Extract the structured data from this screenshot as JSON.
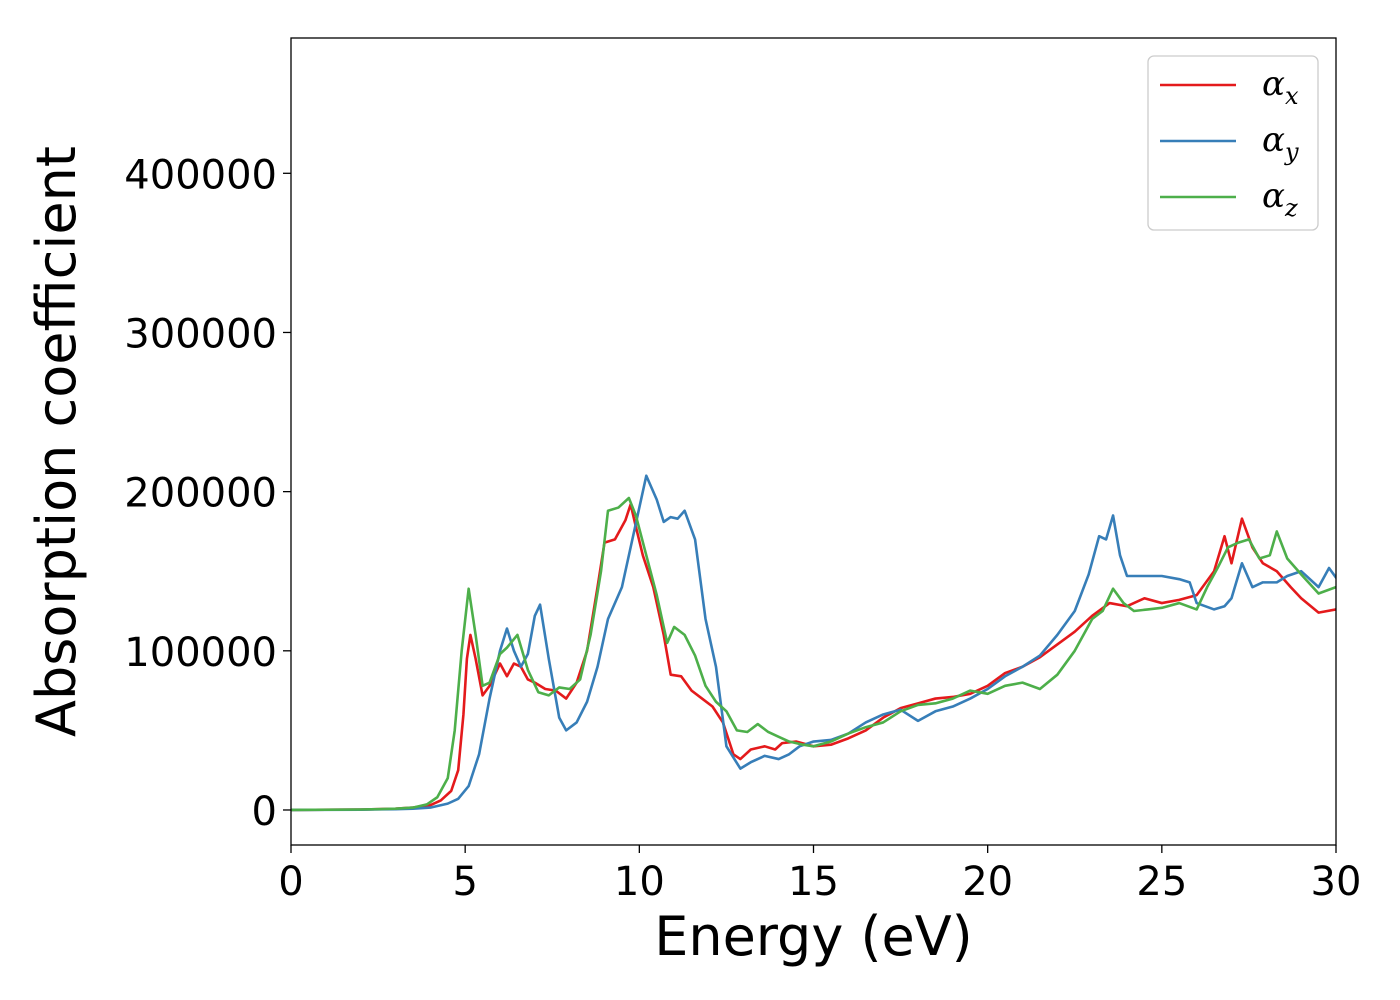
{
  "chart_data": {
    "type": "line",
    "title": "",
    "xlabel": "Energy (eV)",
    "ylabel": "Absorption coefficient",
    "xlim": [
      0,
      30
    ],
    "ylim": [
      -22000,
      485000
    ],
    "xticks": [
      0,
      5,
      10,
      15,
      20,
      25,
      30
    ],
    "xtick_labels": [
      "0",
      "5",
      "10",
      "15",
      "20",
      "25",
      "30"
    ],
    "yticks": [
      0,
      100000,
      200000,
      300000,
      400000
    ],
    "ytick_labels": [
      "0",
      "100000",
      "200000",
      "300000",
      "400000"
    ],
    "grid": false,
    "legend_position": "top-right",
    "series": [
      {
        "name": "α_x",
        "label_base": "α",
        "label_sub": "x",
        "color": "#e41a1c",
        "points": [
          [
            0,
            0
          ],
          [
            2,
            300
          ],
          [
            3,
            800
          ],
          [
            3.5,
            1500
          ],
          [
            4,
            3000
          ],
          [
            4.3,
            6000
          ],
          [
            4.6,
            12000
          ],
          [
            4.8,
            25000
          ],
          [
            4.95,
            60000
          ],
          [
            5.05,
            95000
          ],
          [
            5.15,
            110000
          ],
          [
            5.3,
            95000
          ],
          [
            5.5,
            72000
          ],
          [
            5.7,
            78000
          ],
          [
            6.0,
            92000
          ],
          [
            6.2,
            84000
          ],
          [
            6.4,
            92000
          ],
          [
            6.6,
            90000
          ],
          [
            6.8,
            82000
          ],
          [
            7.0,
            80000
          ],
          [
            7.3,
            76000
          ],
          [
            7.6,
            75000
          ],
          [
            7.9,
            70000
          ],
          [
            8.2,
            80000
          ],
          [
            8.5,
            100000
          ],
          [
            8.8,
            140000
          ],
          [
            9.0,
            168000
          ],
          [
            9.3,
            170000
          ],
          [
            9.6,
            182000
          ],
          [
            9.75,
            192000
          ],
          [
            9.9,
            178000
          ],
          [
            10.1,
            160000
          ],
          [
            10.4,
            140000
          ],
          [
            10.7,
            110000
          ],
          [
            10.9,
            85000
          ],
          [
            11.2,
            84000
          ],
          [
            11.5,
            75000
          ],
          [
            11.8,
            70000
          ],
          [
            12.1,
            65000
          ],
          [
            12.4,
            55000
          ],
          [
            12.7,
            35000
          ],
          [
            12.9,
            32000
          ],
          [
            13.2,
            38000
          ],
          [
            13.6,
            40000
          ],
          [
            13.9,
            38000
          ],
          [
            14.1,
            42000
          ],
          [
            14.5,
            43000
          ],
          [
            15.0,
            40000
          ],
          [
            15.5,
            41000
          ],
          [
            16.0,
            45000
          ],
          [
            16.5,
            50000
          ],
          [
            17.0,
            58000
          ],
          [
            17.5,
            64000
          ],
          [
            18.0,
            67000
          ],
          [
            18.5,
            70000
          ],
          [
            19.0,
            71000
          ],
          [
            19.5,
            73000
          ],
          [
            20.0,
            78000
          ],
          [
            20.5,
            86000
          ],
          [
            21.0,
            90000
          ],
          [
            21.5,
            96000
          ],
          [
            22.0,
            104000
          ],
          [
            22.5,
            112000
          ],
          [
            23.0,
            122000
          ],
          [
            23.5,
            130000
          ],
          [
            24.0,
            128000
          ],
          [
            24.5,
            133000
          ],
          [
            25.0,
            130000
          ],
          [
            25.5,
            132000
          ],
          [
            26.0,
            135000
          ],
          [
            26.5,
            150000
          ],
          [
            26.8,
            172000
          ],
          [
            27.0,
            155000
          ],
          [
            27.3,
            183000
          ],
          [
            27.6,
            165000
          ],
          [
            27.9,
            155000
          ],
          [
            28.3,
            150000
          ],
          [
            28.7,
            140000
          ],
          [
            29.0,
            133000
          ],
          [
            29.5,
            124000
          ],
          [
            30.0,
            126000
          ]
        ]
      },
      {
        "name": "α_y",
        "label_base": "α",
        "label_sub": "y",
        "color": "#377eb8",
        "points": [
          [
            0,
            0
          ],
          [
            2,
            200
          ],
          [
            3,
            500
          ],
          [
            3.5,
            800
          ],
          [
            4,
            1500
          ],
          [
            4.5,
            4000
          ],
          [
            4.8,
            7000
          ],
          [
            5.1,
            15000
          ],
          [
            5.4,
            35000
          ],
          [
            5.7,
            70000
          ],
          [
            6.0,
            100000
          ],
          [
            6.2,
            114000
          ],
          [
            6.4,
            100000
          ],
          [
            6.6,
            90000
          ],
          [
            6.8,
            98000
          ],
          [
            7.0,
            122000
          ],
          [
            7.15,
            129000
          ],
          [
            7.4,
            95000
          ],
          [
            7.7,
            58000
          ],
          [
            7.9,
            50000
          ],
          [
            8.2,
            55000
          ],
          [
            8.5,
            68000
          ],
          [
            8.8,
            90000
          ],
          [
            9.1,
            120000
          ],
          [
            9.5,
            140000
          ],
          [
            9.9,
            180000
          ],
          [
            10.2,
            210000
          ],
          [
            10.5,
            195000
          ],
          [
            10.7,
            181000
          ],
          [
            10.9,
            184000
          ],
          [
            11.1,
            183000
          ],
          [
            11.3,
            188000
          ],
          [
            11.6,
            170000
          ],
          [
            11.9,
            120000
          ],
          [
            12.2,
            90000
          ],
          [
            12.5,
            40000
          ],
          [
            12.9,
            26000
          ],
          [
            13.2,
            30000
          ],
          [
            13.6,
            34000
          ],
          [
            14.0,
            32000
          ],
          [
            14.3,
            35000
          ],
          [
            14.6,
            40000
          ],
          [
            15.0,
            43000
          ],
          [
            15.5,
            44000
          ],
          [
            16.0,
            48000
          ],
          [
            16.5,
            55000
          ],
          [
            17.0,
            60000
          ],
          [
            17.5,
            63000
          ],
          [
            18.0,
            56000
          ],
          [
            18.5,
            62000
          ],
          [
            19.0,
            65000
          ],
          [
            19.5,
            70000
          ],
          [
            20.0,
            76000
          ],
          [
            20.5,
            84000
          ],
          [
            21.0,
            90000
          ],
          [
            21.5,
            97000
          ],
          [
            22.0,
            110000
          ],
          [
            22.5,
            125000
          ],
          [
            22.9,
            148000
          ],
          [
            23.2,
            172000
          ],
          [
            23.4,
            170000
          ],
          [
            23.6,
            185000
          ],
          [
            23.8,
            160000
          ],
          [
            24.0,
            147000
          ],
          [
            24.5,
            147000
          ],
          [
            25.0,
            147000
          ],
          [
            25.5,
            145000
          ],
          [
            25.8,
            143000
          ],
          [
            26.0,
            130000
          ],
          [
            26.5,
            126000
          ],
          [
            26.8,
            128000
          ],
          [
            27.0,
            133000
          ],
          [
            27.3,
            155000
          ],
          [
            27.6,
            140000
          ],
          [
            27.9,
            143000
          ],
          [
            28.3,
            143000
          ],
          [
            28.6,
            147000
          ],
          [
            29.0,
            150000
          ],
          [
            29.5,
            140000
          ],
          [
            29.8,
            152000
          ],
          [
            30.0,
            146000
          ]
        ]
      },
      {
        "name": "α_z",
        "label_base": "α",
        "label_sub": "z",
        "color": "#4daf4a",
        "points": [
          [
            0,
            0
          ],
          [
            2,
            300
          ],
          [
            3,
            800
          ],
          [
            3.5,
            1500
          ],
          [
            3.9,
            3500
          ],
          [
            4.2,
            8000
          ],
          [
            4.5,
            20000
          ],
          [
            4.7,
            50000
          ],
          [
            4.9,
            100000
          ],
          [
            5.1,
            139000
          ],
          [
            5.3,
            110000
          ],
          [
            5.5,
            78000
          ],
          [
            5.7,
            80000
          ],
          [
            6.0,
            98000
          ],
          [
            6.2,
            102000
          ],
          [
            6.5,
            110000
          ],
          [
            6.8,
            88000
          ],
          [
            7.1,
            74000
          ],
          [
            7.4,
            72000
          ],
          [
            7.7,
            77000
          ],
          [
            8.0,
            76000
          ],
          [
            8.3,
            82000
          ],
          [
            8.6,
            110000
          ],
          [
            8.9,
            150000
          ],
          [
            9.1,
            188000
          ],
          [
            9.4,
            190000
          ],
          [
            9.7,
            196000
          ],
          [
            9.9,
            185000
          ],
          [
            10.2,
            160000
          ],
          [
            10.5,
            135000
          ],
          [
            10.8,
            105000
          ],
          [
            11.0,
            115000
          ],
          [
            11.3,
            110000
          ],
          [
            11.6,
            97000
          ],
          [
            11.9,
            78000
          ],
          [
            12.2,
            68000
          ],
          [
            12.5,
            62000
          ],
          [
            12.8,
            50000
          ],
          [
            13.1,
            49000
          ],
          [
            13.4,
            54000
          ],
          [
            13.7,
            49000
          ],
          [
            14.0,
            46000
          ],
          [
            14.3,
            43000
          ],
          [
            14.7,
            41000
          ],
          [
            15.0,
            40000
          ],
          [
            15.5,
            43000
          ],
          [
            16.0,
            48000
          ],
          [
            16.5,
            52000
          ],
          [
            17.0,
            55000
          ],
          [
            17.5,
            62000
          ],
          [
            18.0,
            66000
          ],
          [
            18.5,
            67000
          ],
          [
            19.0,
            70000
          ],
          [
            19.5,
            75000
          ],
          [
            20.0,
            73000
          ],
          [
            20.5,
            78000
          ],
          [
            21.0,
            80000
          ],
          [
            21.5,
            76000
          ],
          [
            22.0,
            85000
          ],
          [
            22.5,
            100000
          ],
          [
            23.0,
            120000
          ],
          [
            23.3,
            125000
          ],
          [
            23.6,
            139000
          ],
          [
            23.9,
            130000
          ],
          [
            24.2,
            125000
          ],
          [
            24.6,
            126000
          ],
          [
            25.0,
            127000
          ],
          [
            25.5,
            130000
          ],
          [
            26.0,
            126000
          ],
          [
            26.3,
            140000
          ],
          [
            26.6,
            152000
          ],
          [
            26.9,
            165000
          ],
          [
            27.2,
            168000
          ],
          [
            27.5,
            170000
          ],
          [
            27.8,
            158000
          ],
          [
            28.1,
            160000
          ],
          [
            28.3,
            175000
          ],
          [
            28.6,
            158000
          ],
          [
            29.0,
            148000
          ],
          [
            29.5,
            136000
          ],
          [
            30.0,
            140000
          ]
        ]
      }
    ]
  }
}
